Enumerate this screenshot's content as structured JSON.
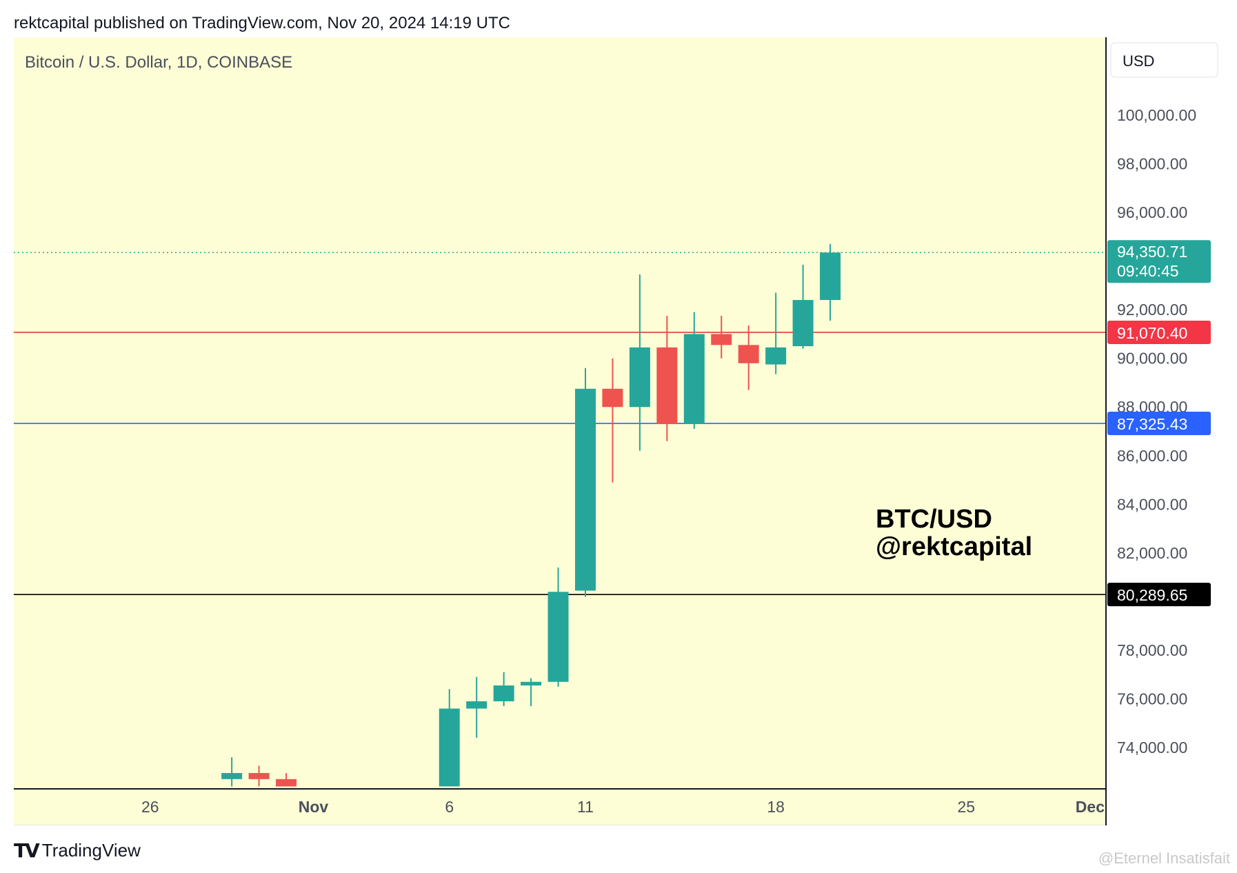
{
  "header": {
    "published_by": "rektcapital published on TradingView.com, Nov 20, 2024 14:19 UTC"
  },
  "chart_data": {
    "type": "candlestick",
    "symbol_label": "Bitcoin / U.S. Dollar, 1D, COINBASE",
    "currency_button": "USD",
    "annotation": [
      "BTC/USD",
      "@rektcapital"
    ],
    "background": "#fdfdd6",
    "colors": {
      "up": "#26a69a",
      "down": "#ef5350"
    },
    "y_axis": {
      "ylim": [
        72000,
        101500
      ],
      "ticks": [
        "100,000.00",
        "98,000.00",
        "96,000.00",
        "92,000.00",
        "90,000.00",
        "88,000.00",
        "86,000.00",
        "84,000.00",
        "82,000.00",
        "78,000.00",
        "76,000.00",
        "74,000.00"
      ],
      "tick_values": [
        100000,
        98000,
        96000,
        92000,
        90000,
        88000,
        86000,
        84000,
        82000,
        78000,
        76000,
        74000
      ]
    },
    "x_axis": {
      "tick_labels": [
        "26",
        "Nov",
        "6",
        "11",
        "18",
        "25",
        "Dec"
      ],
      "tick_dates": [
        "2024-10-26",
        "2024-11-01",
        "2024-11-06",
        "2024-11-11",
        "2024-11-18",
        "2024-11-25",
        "2024-12-01"
      ],
      "bold": [
        false,
        true,
        false,
        false,
        false,
        false,
        true
      ],
      "range": [
        "2024-10-22",
        "2024-12-01"
      ]
    },
    "candles": [
      {
        "date": "2024-10-29",
        "open": 72700,
        "high": 73600,
        "low": 72400,
        "close": 72950
      },
      {
        "date": "2024-10-30",
        "open": 72950,
        "high": 73250,
        "low": 72400,
        "close": 72700
      },
      {
        "date": "2024-10-31",
        "open": 72700,
        "high": 72950,
        "low": 72400,
        "close": 72400
      },
      {
        "date": "2024-11-06",
        "open": 72400,
        "high": 76400,
        "low": 72400,
        "close": 75600
      },
      {
        "date": "2024-11-07",
        "open": 75600,
        "high": 76900,
        "low": 74400,
        "close": 75900
      },
      {
        "date": "2024-11-08",
        "open": 75900,
        "high": 77100,
        "low": 75700,
        "close": 76550
      },
      {
        "date": "2024-11-09",
        "open": 76550,
        "high": 76850,
        "low": 75700,
        "close": 76700
      },
      {
        "date": "2024-11-10",
        "open": 76700,
        "high": 81400,
        "low": 76500,
        "close": 80400
      },
      {
        "date": "2024-11-11",
        "open": 80450,
        "high": 89600,
        "low": 80200,
        "close": 88750
      },
      {
        "date": "2024-11-12",
        "open": 88750,
        "high": 90000,
        "low": 84900,
        "close": 88000
      },
      {
        "date": "2024-11-13",
        "open": 88000,
        "high": 93450,
        "low": 86200,
        "close": 90450
      },
      {
        "date": "2024-11-14",
        "open": 90450,
        "high": 91750,
        "low": 86600,
        "close": 87300
      },
      {
        "date": "2024-11-15",
        "open": 87300,
        "high": 91900,
        "low": 87100,
        "close": 91000
      },
      {
        "date": "2024-11-16",
        "open": 91000,
        "high": 91750,
        "low": 90000,
        "close": 90550
      },
      {
        "date": "2024-11-17",
        "open": 90550,
        "high": 91350,
        "low": 88700,
        "close": 89800
      },
      {
        "date": "2024-11-18",
        "open": 89750,
        "high": 92700,
        "low": 89350,
        "close": 90450
      },
      {
        "date": "2024-11-19",
        "open": 90500,
        "high": 93850,
        "low": 90400,
        "close": 92400
      },
      {
        "date": "2024-11-20",
        "open": 92400,
        "high": 94700,
        "low": 91550,
        "close": 94350.71
      }
    ],
    "horizontal_lines": [
      {
        "value": 91070.4,
        "label": "91,070.40",
        "color": "#e53935",
        "label_bg": "#f23645",
        "label_color": "#ffffff"
      },
      {
        "value": 87325.43,
        "label": "87,325.43",
        "color": "#2962ff",
        "label_bg": "#2962ff",
        "label_color": "#ffffff"
      },
      {
        "value": 80289.65,
        "label": "80,289.65",
        "color": "#000000",
        "label_bg": "#000000",
        "label_color": "#ffffff"
      }
    ],
    "last_price": {
      "value": 94350.71,
      "label": "94,350.71",
      "countdown": "09:40:45",
      "color": "#26a69a"
    }
  },
  "footer": {
    "logo_text": "TradingView",
    "watermark": "@Eternel Insatisfait"
  }
}
